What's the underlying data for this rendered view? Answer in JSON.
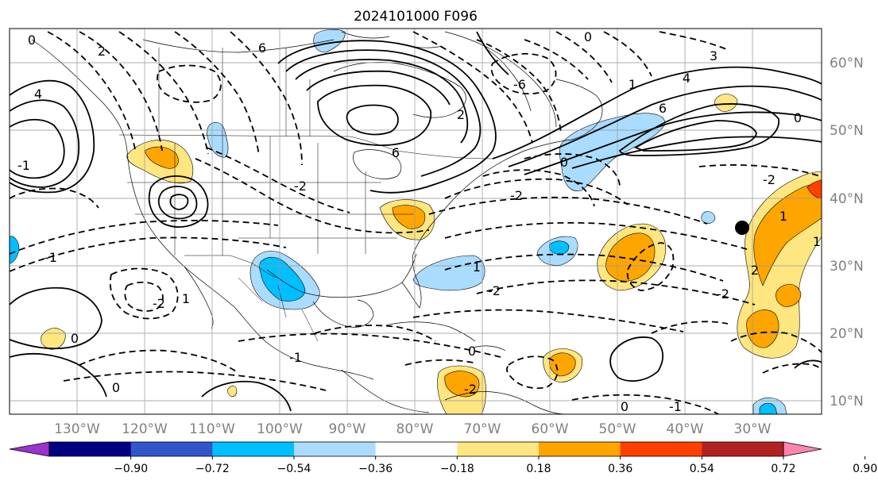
{
  "title": "2024101000 F096",
  "map": {
    "lon_range": [
      -140,
      -15
    ],
    "lat_range": [
      7,
      65
    ],
    "gridlines": true,
    "lon_ticks": [
      "130°W",
      "120°W",
      "110°W",
      "100°W",
      "90°W",
      "80°W",
      "70°W",
      "60°W",
      "50°W",
      "40°W",
      "30°W"
    ],
    "lat_ticks": [
      "10°N",
      "20°N",
      "30°N",
      "40°N",
      "50°N",
      "60°N"
    ],
    "contour_labels": [
      "2",
      "0",
      "6",
      "4",
      "-1",
      "2",
      "-2",
      "0",
      "3",
      "4",
      "6",
      "1",
      "0",
      "-2",
      "-2",
      "-1",
      "-2",
      "-2",
      "0",
      "1",
      "-1",
      "0",
      "0",
      "0",
      "-1",
      "-2",
      "2",
      "1",
      "1",
      "6",
      "-6",
      "1",
      "-2",
      "0"
    ],
    "marker_color": "#000000"
  },
  "colorbar": {
    "labels": [
      "−0.90",
      "−0.72",
      "−0.54",
      "−0.36",
      "−0.18",
      "0.18",
      "0.36",
      "0.54",
      "0.72",
      "0.90"
    ],
    "colors": [
      "#9933cc",
      "#000080",
      "#3355cc",
      "#00bfff",
      "#aadcff",
      "#ffffff",
      "#ffe680",
      "#ffa500",
      "#ff4000",
      "#b22222",
      "#ff85b0"
    ]
  }
}
